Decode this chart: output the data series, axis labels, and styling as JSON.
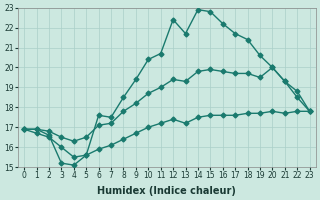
{
  "xlabel": "Humidex (Indice chaleur)",
  "bg_color": "#cce8e0",
  "grid_color": "#aacfc8",
  "line_color": "#1a7a6e",
  "xlim": [
    -0.5,
    23.5
  ],
  "ylim": [
    15,
    23
  ],
  "xticks": [
    0,
    1,
    2,
    3,
    4,
    5,
    6,
    7,
    8,
    9,
    10,
    11,
    12,
    13,
    14,
    15,
    16,
    17,
    18,
    19,
    20,
    21,
    22,
    23
  ],
  "yticks": [
    15,
    16,
    17,
    18,
    19,
    20,
    21,
    22,
    23
  ],
  "line1_x": [
    0,
    1,
    2,
    3,
    4,
    5,
    6,
    7,
    8,
    9,
    10,
    11,
    12,
    13,
    14,
    15,
    16,
    17,
    18,
    19,
    20,
    21,
    22,
    23
  ],
  "line1_y": [
    16.9,
    16.9,
    16.6,
    15.2,
    15.1,
    15.6,
    17.6,
    17.5,
    18.5,
    19.4,
    20.4,
    20.7,
    22.4,
    21.7,
    22.9,
    22.8,
    22.2,
    21.7,
    21.4,
    20.6,
    20.0,
    19.3,
    18.5,
    17.8
  ],
  "line2_x": [
    0,
    1,
    2,
    3,
    4,
    5,
    6,
    7,
    8,
    9,
    10,
    11,
    12,
    13,
    14,
    15,
    16,
    17,
    18,
    19,
    20,
    21,
    22,
    23
  ],
  "line2_y": [
    16.9,
    16.9,
    16.8,
    16.5,
    16.3,
    16.5,
    17.1,
    17.2,
    17.8,
    18.2,
    18.7,
    19.0,
    19.4,
    19.3,
    19.8,
    19.9,
    19.8,
    19.7,
    19.7,
    19.5,
    20.0,
    19.3,
    18.8,
    17.8
  ],
  "line3_x": [
    0,
    1,
    2,
    3,
    4,
    5,
    6,
    7,
    8,
    9,
    10,
    11,
    12,
    13,
    14,
    15,
    16,
    17,
    18,
    19,
    20,
    21,
    22,
    23
  ],
  "line3_y": [
    16.9,
    16.7,
    16.5,
    16.0,
    15.5,
    15.6,
    15.9,
    16.1,
    16.4,
    16.7,
    17.0,
    17.2,
    17.4,
    17.2,
    17.5,
    17.6,
    17.6,
    17.6,
    17.7,
    17.7,
    17.8,
    17.7,
    17.8,
    17.8
  ],
  "marker": "D",
  "markersize": 2.5,
  "linewidth": 1.0
}
